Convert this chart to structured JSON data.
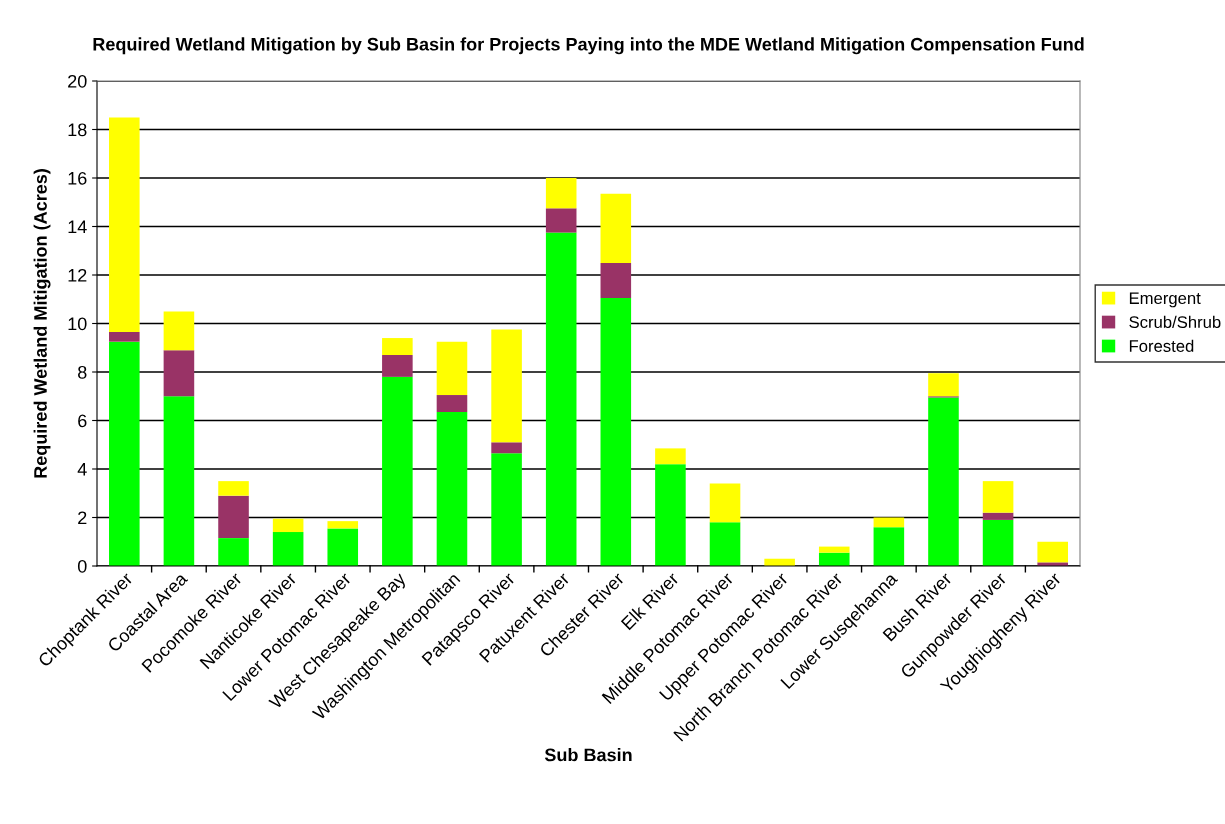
{
  "chart_data": {
    "type": "bar",
    "title": "Required Wetland Mitigation by Sub Basin for Projects Paying into the MDE Wetland Mitigation Compensation Fund",
    "xlabel": "Sub Basin",
    "ylabel": "Required Wetland Mitigation (Acres)",
    "categories": [
      "Choptank River",
      "Coastal Area",
      "Pocomoke River",
      "Nanticoke River",
      "Lower Potomac River",
      "West Chesapeake Bay",
      "Washington Metropolitan",
      "Patapsco River",
      "Patuxent River",
      "Chester River",
      "Elk River",
      "Middle Potomac River",
      "Upper Potomac River",
      "North Branch Potomac River",
      "Lower Susqehanna",
      "Bush River",
      "Gunpowder River",
      "Youghiogheny River"
    ],
    "stacked": true,
    "series": [
      {
        "name": "Forested",
        "color": "#00ff00",
        "values": [
          9.25,
          7.0,
          1.15,
          1.4,
          1.55,
          7.8,
          6.35,
          4.65,
          13.75,
          11.05,
          4.2,
          1.8,
          0,
          0.55,
          1.6,
          6.95,
          1.9,
          0
        ]
      },
      {
        "name": "Scrub/Shrub",
        "color": "#993366",
        "values": [
          0.4,
          1.9,
          1.75,
          0,
          0,
          0.9,
          0.7,
          0.45,
          1.0,
          1.45,
          0,
          0,
          0,
          0,
          0,
          0.05,
          0.3,
          0.15
        ]
      },
      {
        "name": "Emergent",
        "color": "#ffff00",
        "values": [
          8.85,
          1.6,
          0.6,
          0.55,
          0.3,
          0.7,
          2.2,
          4.65,
          1.25,
          2.85,
          0.65,
          1.6,
          0.3,
          0.25,
          0.4,
          0.95,
          1.3,
          0.85
        ]
      }
    ],
    "ylim": [
      0,
      20
    ],
    "yticks": [
      0,
      2,
      4,
      6,
      8,
      10,
      12,
      14,
      16,
      18,
      20
    ],
    "grid": "y",
    "legend": "right"
  }
}
